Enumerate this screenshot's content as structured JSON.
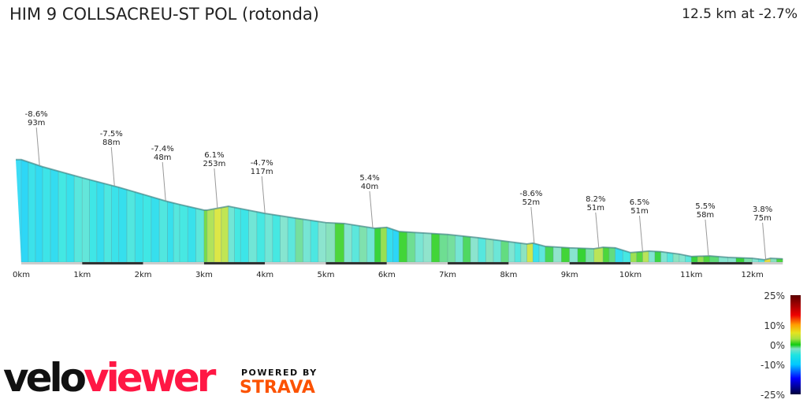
{
  "header": {
    "title": "HIM 9 COLLSACREU-ST POL (rotonda)",
    "summary": "12.5 km at -2.7%"
  },
  "chart_data": {
    "type": "area",
    "title": "HIM 9 COLLSACREU-ST POL (rotonda)",
    "xlabel": "",
    "ylabel": "",
    "x_unit": "km",
    "xlim": [
      0,
      12.5
    ],
    "x_ticks": [
      "0km",
      "1km",
      "2km",
      "3km",
      "4km",
      "5km",
      "6km",
      "7km",
      "8km",
      "9km",
      "10km",
      "11km",
      "12km"
    ],
    "profile": {
      "km": [
        0,
        0.35,
        1.0,
        1.6,
        2.0,
        2.4,
        2.6,
        3.0,
        3.05,
        3.4,
        3.6,
        4.0,
        4.5,
        5.0,
        5.3,
        5.8,
        6.0,
        6.2,
        6.6,
        7.0,
        7.5,
        8.0,
        8.3,
        8.4,
        8.6,
        9.0,
        9.4,
        9.55,
        9.75,
        10.0,
        10.3,
        10.5,
        10.8,
        11.0,
        11.3,
        11.6,
        12.0,
        12.2,
        12.3,
        12.5
      ],
      "elevation_m": [
        345,
        321,
        284,
        252,
        228,
        204,
        194,
        175,
        175,
        188,
        180,
        164,
        148,
        133,
        130,
        114,
        117,
        103,
        98,
        93,
        82,
        69,
        61,
        64,
        53,
        48,
        45,
        50,
        48,
        32,
        37,
        35,
        27,
        19,
        21,
        16,
        13,
        8,
        13,
        11
      ]
    },
    "annotations": [
      {
        "km": 0.3,
        "grade": "-8.6%",
        "length": "93m"
      },
      {
        "km": 1.53,
        "grade": "-7.5%",
        "length": "88m"
      },
      {
        "km": 2.37,
        "grade": "-7.4%",
        "length": "48m"
      },
      {
        "km": 3.22,
        "grade": "6.1%",
        "length": "253m"
      },
      {
        "km": 4.0,
        "grade": "-4.7%",
        "length": "117m"
      },
      {
        "km": 5.77,
        "grade": "5.4%",
        "length": "40m"
      },
      {
        "km": 8.42,
        "grade": "-8.6%",
        "length": "52m"
      },
      {
        "km": 9.48,
        "grade": "8.2%",
        "length": "51m"
      },
      {
        "km": 10.2,
        "grade": "6.5%",
        "length": "51m"
      },
      {
        "km": 11.28,
        "grade": "5.5%",
        "length": "58m"
      },
      {
        "km": 12.22,
        "grade": "3.8%",
        "length": "75m"
      }
    ],
    "legend": {
      "labels": [
        "25%",
        "10%",
        "0%",
        "-10%",
        "-25%"
      ],
      "range": [
        -25,
        25
      ],
      "colors": [
        {
          "grade": -25,
          "color": "#00003c"
        },
        {
          "grade": -17,
          "color": "#0000ff"
        },
        {
          "grade": -10,
          "color": "#00c8ff"
        },
        {
          "grade": -5,
          "color": "#20e4e0"
        },
        {
          "grade": -2,
          "color": "#7fe0c4"
        },
        {
          "grade": 0,
          "color": "#10cc10"
        },
        {
          "grade": 3,
          "color": "#a8e040"
        },
        {
          "grade": 6,
          "color": "#e4e420"
        },
        {
          "grade": 10,
          "color": "#ffa000"
        },
        {
          "grade": 15,
          "color": "#ee0000"
        },
        {
          "grade": 25,
          "color": "#5a0000"
        }
      ]
    }
  },
  "branding": {
    "logo_velo": "velo",
    "logo_viewer": "viewer",
    "powered_by": "POWERED BY",
    "strava": "STRAVA"
  }
}
